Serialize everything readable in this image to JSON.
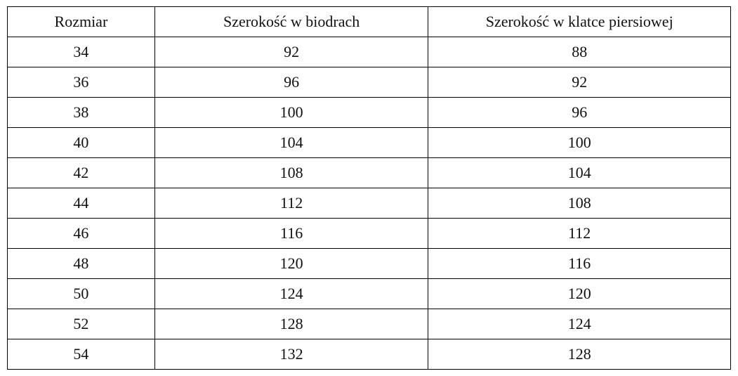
{
  "table": {
    "header": [
      "Rozmiar",
      "Szerokość w biodrach",
      "Szerokość w klatce piersiowej"
    ],
    "rows": [
      [
        34,
        92,
        88
      ],
      [
        36,
        96,
        92
      ],
      [
        38,
        100,
        96
      ],
      [
        40,
        104,
        100
      ],
      [
        42,
        108,
        104
      ],
      [
        44,
        112,
        108
      ],
      [
        46,
        116,
        112
      ],
      [
        48,
        120,
        116
      ],
      [
        50,
        124,
        120
      ],
      [
        52,
        128,
        124
      ],
      [
        54,
        132,
        128
      ]
    ]
  }
}
